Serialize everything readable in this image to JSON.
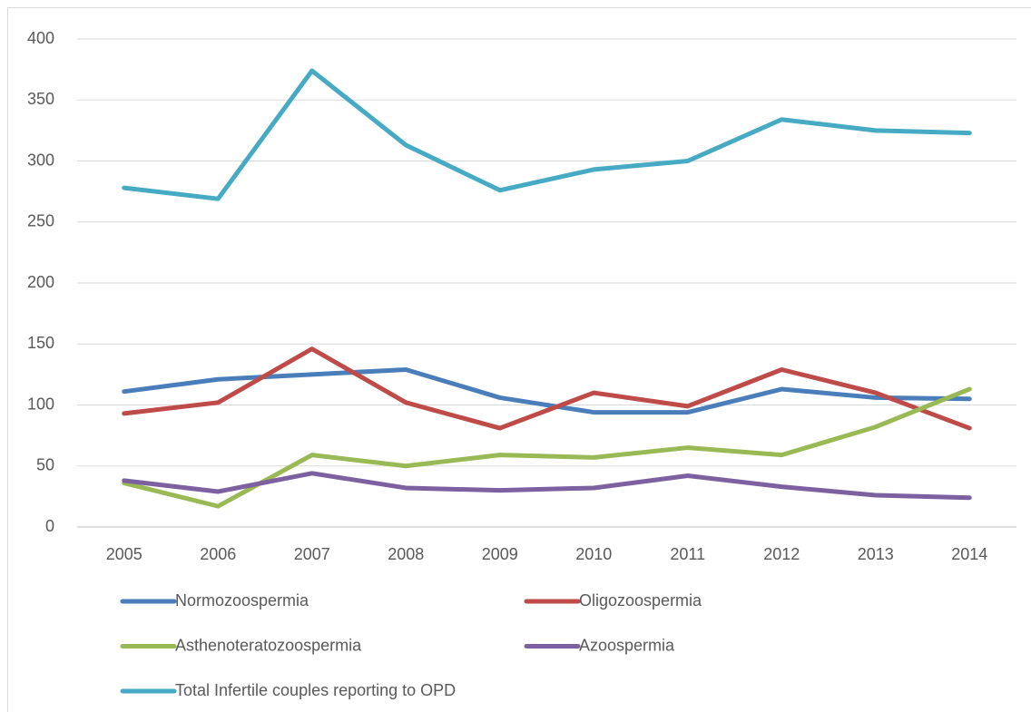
{
  "chart_data": {
    "type": "line",
    "categories": [
      "2005",
      "2006",
      "2007",
      "2008",
      "2009",
      "2010",
      "2011",
      "2012",
      "2013",
      "2014"
    ],
    "series": [
      {
        "name": "Normozoospermia",
        "color": "#4a7ebb",
        "values": [
          111,
          121,
          125,
          129,
          106,
          94,
          94,
          113,
          106,
          105
        ]
      },
      {
        "name": "Oligozoospermia",
        "color": "#be4b48",
        "values": [
          93,
          102,
          146,
          102,
          81,
          110,
          99,
          129,
          110,
          81
        ]
      },
      {
        "name": "Asthenoteratozoospermia",
        "color": "#98b954",
        "values": [
          36,
          17,
          59,
          50,
          59,
          57,
          65,
          59,
          82,
          113
        ]
      },
      {
        "name": "Azoospermia",
        "color": "#7d60a0",
        "values": [
          38,
          29,
          44,
          32,
          30,
          32,
          42,
          33,
          26,
          24
        ]
      },
      {
        "name": "Total Infertile couples reporting to OPD",
        "color": "#46aac5",
        "values": [
          278,
          269,
          374,
          313,
          276,
          293,
          300,
          334,
          325,
          323
        ]
      }
    ],
    "ylim": [
      0,
      400
    ],
    "yticks": [
      0,
      50,
      100,
      150,
      200,
      250,
      300,
      350,
      400
    ],
    "grid": true
  }
}
